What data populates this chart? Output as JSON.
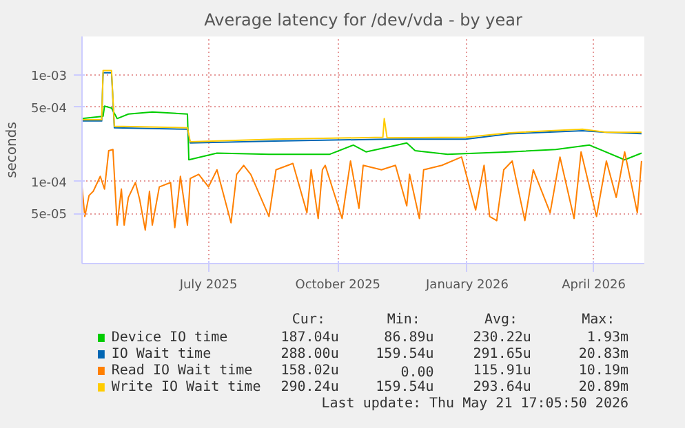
{
  "chart_data": {
    "type": "line",
    "title": "Average latency for /dev/vda - by year",
    "ylabel": "seconds",
    "log": "y",
    "grid": true,
    "legend": "bottom",
    "marker": "none",
    "line_style": "solid",
    "xlim": [
      "2025-04-17",
      "2026-05-22"
    ],
    "ylim": [
      1.7e-05,
      0.0023
    ],
    "xticks": [
      {
        "value": "2025-07-16",
        "label": "July 2025"
      },
      {
        "value": "2025-10-16",
        "label": "October 2025"
      },
      {
        "value": "2026-01-16",
        "label": "January 2026"
      },
      {
        "value": "2026-04-16",
        "label": "April 2026"
      }
    ],
    "yticks": [
      {
        "value": 5e-05,
        "label": "5e-05"
      },
      {
        "value": 0.0001,
        "label": "1e-04"
      },
      {
        "value": 0.0005,
        "label": "5e-04"
      },
      {
        "value": 0.001,
        "label": "1e-03"
      }
    ],
    "series": [
      {
        "name": "Device IO time",
        "color": "#00cc00",
        "x": [
          "2025-04-17",
          "2025-05-02",
          "2025-05-03",
          "2025-05-08",
          "2025-05-12",
          "2025-05-20",
          "2025-06-06",
          "2025-07-01",
          "2025-07-02",
          "2025-07-22",
          "2025-08-28",
          "2025-10-10",
          "2025-10-27",
          "2025-11-05",
          "2025-12-04",
          "2025-12-10",
          "2026-01-02",
          "2026-02-15",
          "2026-03-20",
          "2026-04-13",
          "2026-05-08",
          "2026-05-20"
        ],
        "values": [
          0.00039,
          0.00041,
          0.00051,
          0.00049,
          0.00039,
          0.00043,
          0.00045,
          0.00043,
          0.00016,
          0.000185,
          0.00018,
          0.00018,
          0.00022,
          0.00019,
          0.00023,
          0.000195,
          0.00018,
          0.00019,
          0.0002,
          0.00022,
          0.00016,
          0.000185
        ]
      },
      {
        "name": "IO Wait time",
        "color": "#0066b3",
        "x": [
          "2025-04-17",
          "2025-05-01",
          "2025-05-02",
          "2025-05-08",
          "2025-05-10",
          "2025-07-01",
          "2025-07-03",
          "2025-09-01",
          "2025-11-20",
          "2026-01-15",
          "2026-02-15",
          "2026-04-08",
          "2026-04-25",
          "2026-05-20"
        ],
        "values": [
          0.00037,
          0.00037,
          0.00105,
          0.00105,
          0.00032,
          0.00031,
          0.00023,
          0.00024,
          0.00025,
          0.00025,
          0.00028,
          0.0003,
          0.00029,
          0.000282
        ]
      },
      {
        "name": "Read IO Wait time",
        "color": "#ff8000",
        "x": [
          "2025-04-17",
          "2025-04-19",
          "2025-04-22",
          "2025-04-25",
          "2025-04-30",
          "2025-05-03",
          "2025-05-06",
          "2025-05-09",
          "2025-05-12",
          "2025-05-15",
          "2025-05-17",
          "2025-05-20",
          "2025-05-25",
          "2025-05-28",
          "2025-06-01",
          "2025-06-04",
          "2025-06-06",
          "2025-06-11",
          "2025-06-19",
          "2025-06-22",
          "2025-06-26",
          "2025-07-01",
          "2025-07-03",
          "2025-07-09",
          "2025-07-16",
          "2025-07-22",
          "2025-08-01",
          "2025-08-05",
          "2025-08-10",
          "2025-08-15",
          "2025-08-28",
          "2025-09-02",
          "2025-09-14",
          "2025-09-24",
          "2025-09-27",
          "2025-10-02",
          "2025-10-05",
          "2025-10-07",
          "2025-10-19",
          "2025-10-25",
          "2025-10-31",
          "2025-11-03",
          "2025-11-16",
          "2025-11-26",
          "2025-12-04",
          "2025-12-06",
          "2025-12-13",
          "2025-12-16",
          "2025-12-29",
          "2026-01-12",
          "2026-01-22",
          "2026-01-28",
          "2026-02-01",
          "2026-02-06",
          "2026-02-11",
          "2026-02-17",
          "2026-02-26",
          "2026-03-04",
          "2026-03-16",
          "2026-03-23",
          "2026-04-02",
          "2026-04-07",
          "2026-04-18",
          "2026-04-25",
          "2026-05-02",
          "2026-05-08",
          "2026-05-17",
          "2026-05-20"
        ],
        "values": [
          8.9e-05,
          4.7e-05,
          7.4e-05,
          8.1e-05,
          0.000112,
          8.5e-05,
          0.000195,
          0.0002,
          3.9e-05,
          8.5e-05,
          3.9e-05,
          7.1e-05,
          9.8e-05,
          6.8e-05,
          3.5e-05,
          8.1e-05,
          3.9e-05,
          8.9e-05,
          9.8e-05,
          3.7e-05,
          0.000112,
          3.9e-05,
          0.000107,
          0.000117,
          8.9e-05,
          0.000129,
          4.1e-05,
          0.000117,
          0.000142,
          0.000117,
          4.7e-05,
          0.000129,
          0.000148,
          5.1e-05,
          0.000129,
          4.5e-05,
          0.000129,
          0.000142,
          4.5e-05,
          0.000156,
          5.6e-05,
          0.000142,
          0.000129,
          0.000142,
          5.9e-05,
          0.000117,
          4.5e-05,
          0.000129,
          0.000142,
          0.00017,
          5.4e-05,
          0.000142,
          4.7e-05,
          4.3e-05,
          0.000129,
          0.000156,
          4.3e-05,
          0.000129,
          5.1e-05,
          0.00017,
          4.5e-05,
          0.00019,
          4.7e-05,
          0.000156,
          7.1e-05,
          0.00019,
          5.1e-05,
          0.000156
        ]
      },
      {
        "name": "Write IO Wait time",
        "color": "#ffcc00",
        "x": [
          "2025-04-17",
          "2025-05-01",
          "2025-05-02",
          "2025-05-08",
          "2025-05-10",
          "2025-07-01",
          "2025-07-03",
          "2025-09-01",
          "2025-11-17",
          "2025-11-18",
          "2025-11-20",
          "2026-01-15",
          "2026-02-15",
          "2026-04-08",
          "2026-04-25",
          "2026-05-20"
        ],
        "values": [
          0.00038,
          0.00038,
          0.0011,
          0.0011,
          0.00033,
          0.00032,
          0.000236,
          0.00025,
          0.00026,
          0.00039,
          0.000257,
          0.00026,
          0.000287,
          0.00031,
          0.00029,
          0.00029
        ]
      }
    ],
    "annotations": [
      "Cur:",
      "Min:",
      "Avg:",
      "Max:",
      "187.04u",
      "86.89u",
      "230.22u",
      "1.93m",
      "288.00u",
      "159.54u",
      "291.65u",
      "20.83m",
      "158.02u",
      "0.00",
      "115.91u",
      "10.19m",
      "290.24u",
      "159.54u",
      "293.64u",
      "20.89m",
      "Last update: Thu May 21 17:05:50 2026"
    ]
  }
}
